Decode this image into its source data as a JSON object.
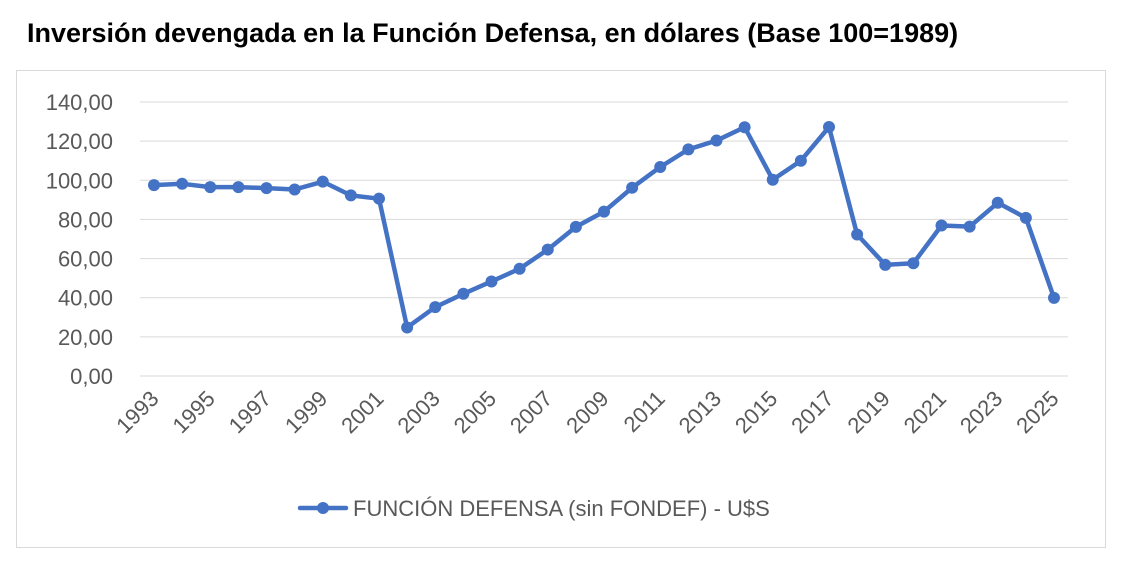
{
  "chart_data": {
    "type": "line",
    "title": "Inversión devengada en la Función Defensa, en dólares (Base 100=1989)",
    "xlabel": "",
    "ylabel": "",
    "ylim": [
      0,
      140
    ],
    "y_ticks": [
      "0,00",
      "20,00",
      "40,00",
      "60,00",
      "80,00",
      "100,00",
      "120,00",
      "140,00"
    ],
    "x_tick_labels": [
      "1993",
      "1995",
      "1997",
      "1999",
      "2001",
      "2003",
      "2005",
      "2007",
      "2009",
      "2011",
      "2013",
      "2015",
      "2017",
      "2019",
      "2021",
      "2023",
      "2025"
    ],
    "x": [
      1993,
      1994,
      1995,
      1996,
      1997,
      1998,
      1999,
      2000,
      2001,
      2002,
      2003,
      2004,
      2005,
      2006,
      2007,
      2008,
      2009,
      2010,
      2011,
      2012,
      2013,
      2014,
      2015,
      2016,
      2017,
      2018,
      2019,
      2020,
      2021,
      2022,
      2023,
      2024,
      2025
    ],
    "grid": true,
    "legend_position": "bottom",
    "series": [
      {
        "name": "FUNCIÓN DEFENSA (sin FONDEF) - U$S",
        "color": "#4472c4",
        "values": [
          97.5,
          98.2,
          96.5,
          96.5,
          96.0,
          95.3,
          99.3,
          92.3,
          90.6,
          24.8,
          35.2,
          42.0,
          48.3,
          54.8,
          64.6,
          76.2,
          84.0,
          96.2,
          106.8,
          115.8,
          120.3,
          127.1,
          100.3,
          110.0,
          127.2,
          72.3,
          56.8,
          57.6,
          76.9,
          76.3,
          88.5,
          80.8,
          39.9
        ]
      }
    ]
  }
}
